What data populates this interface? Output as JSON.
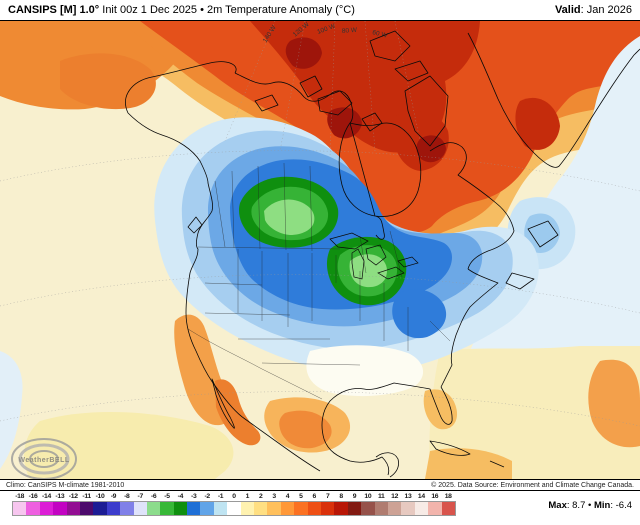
{
  "header": {
    "model": "CANSIPS [M] 1.0°",
    "init": " Init 00z 1 Dec 2025 • 2m Temperature Anomaly (°C)",
    "valid_label": "Valid",
    "valid_value": ": Jan 2026"
  },
  "map": {
    "graticule_labels": [
      "140 W",
      "120 W",
      "100 W",
      "80 W",
      "60 W"
    ],
    "watermark": "WeatherBELL"
  },
  "footer": {
    "climo": "Climo: CanSIPS M-climate 1981-2010",
    "copyright": "© 2025. Data Source: Environment and Climate Change Canada.",
    "max_label": "Max",
    "max_value": ": 8.7",
    "separator": " • ",
    "min_label": "Min",
    "min_value": ": -6.4"
  },
  "colorbar": {
    "labels": [
      "-18",
      "-16",
      "-14",
      "-13",
      "-12",
      "-11",
      "-10",
      "-9",
      "-8",
      "-7",
      "-6",
      "-5",
      "-4",
      "-3",
      "-2",
      "-1",
      "0",
      "1",
      "2",
      "3",
      "4",
      "5",
      "6",
      "7",
      "8",
      "9",
      "10",
      "11",
      "12",
      "13",
      "14",
      "16",
      "18"
    ],
    "colors": [
      "#f7c6ef",
      "#ee5fe0",
      "#dc1ed6",
      "#c203c2",
      "#930d93",
      "#4c0a6c",
      "#1c1c94",
      "#3c3ccc",
      "#8080e8",
      "#dfe3fa",
      "#8cdc8c",
      "#38b838",
      "#0f8f0f",
      "#1f6fd6",
      "#61a4e8",
      "#bfe4f2",
      "#ffffff",
      "#fff2b0",
      "#ffdf82",
      "#ffc05c",
      "#ff9838",
      "#fb7122",
      "#ee4f14",
      "#d9300a",
      "#b81606",
      "#821a12",
      "#96524a",
      "#b07c70",
      "#cda295",
      "#e7c9c0",
      "#f7ebe6",
      "#f2b4ac",
      "#d8544c"
    ]
  }
}
